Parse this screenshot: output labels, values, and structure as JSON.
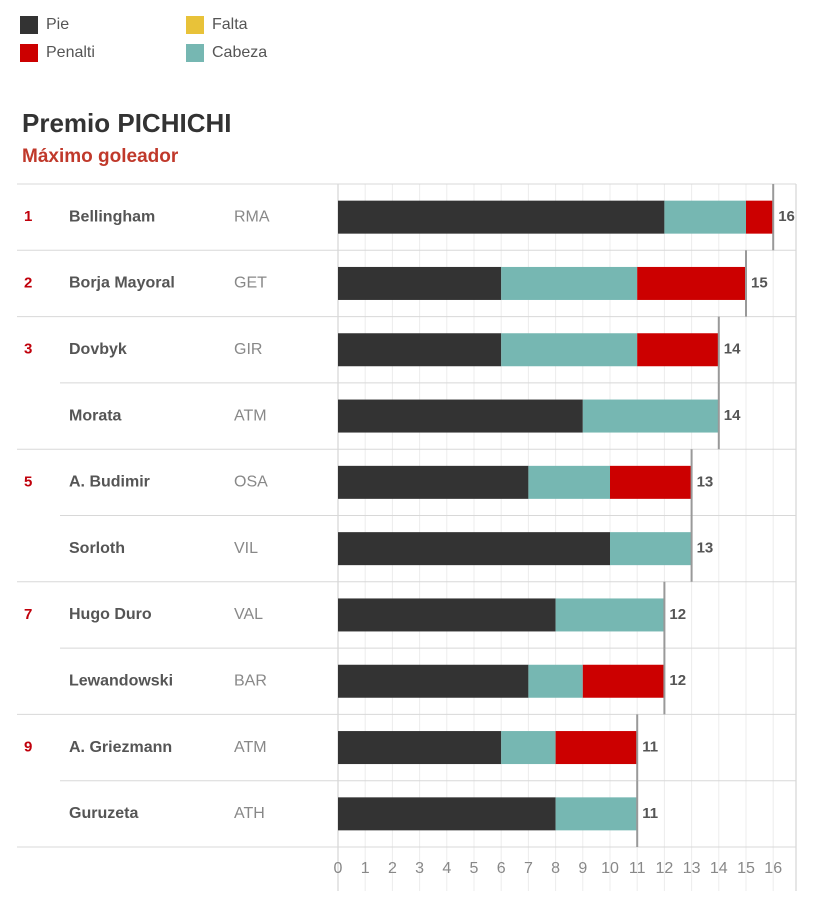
{
  "legend": [
    {
      "label": "Pie",
      "color": "#333333"
    },
    {
      "label": "Falta",
      "color": "#e8c239"
    },
    {
      "label": "Penalti",
      "color": "#cc0000"
    },
    {
      "label": "Cabeza",
      "color": "#76b7b2"
    }
  ],
  "chart_data": {
    "type": "bar",
    "orientation": "horizontal",
    "stacked": true,
    "title": "Premio PICHICHI",
    "subtitle": "Máximo goleador",
    "xlim": [
      0,
      16
    ],
    "xticks": [
      "0",
      "1",
      "2",
      "3",
      "4",
      "5",
      "6",
      "7",
      "8",
      "9",
      "10",
      "11",
      "12",
      "13",
      "14",
      "15",
      "16"
    ],
    "grid": true,
    "legend_position": "top-left",
    "series_order": [
      "pie",
      "cabeza",
      "penalti",
      "falta"
    ],
    "colors": {
      "pie": "#333333",
      "cabeza": "#76b7b2",
      "penalti": "#cc0000",
      "falta": "#e8c239"
    },
    "rows": [
      {
        "rank": "1",
        "name": "Bellingham",
        "team": "RMA",
        "pie": 12,
        "cabeza": 3,
        "penalti": 1,
        "falta": 0,
        "total": "16"
      },
      {
        "rank": "2",
        "name": "Borja Mayoral",
        "team": "GET",
        "pie": 6,
        "cabeza": 5,
        "penalti": 4,
        "falta": 0,
        "total": "15"
      },
      {
        "rank": "3",
        "name": "Dovbyk",
        "team": "GIR",
        "pie": 6,
        "cabeza": 5,
        "penalti": 3,
        "falta": 0,
        "total": "14"
      },
      {
        "rank": "",
        "name": "Morata",
        "team": "ATM",
        "pie": 9,
        "cabeza": 5,
        "penalti": 0,
        "falta": 0,
        "total": "14"
      },
      {
        "rank": "5",
        "name": "A. Budimir",
        "team": "OSA",
        "pie": 7,
        "cabeza": 3,
        "penalti": 3,
        "falta": 0,
        "total": "13"
      },
      {
        "rank": "",
        "name": "Sorloth",
        "team": "VIL",
        "pie": 10,
        "cabeza": 3,
        "penalti": 0,
        "falta": 0,
        "total": "13"
      },
      {
        "rank": "7",
        "name": "Hugo Duro",
        "team": "VAL",
        "pie": 8,
        "cabeza": 4,
        "penalti": 0,
        "falta": 0,
        "total": "12"
      },
      {
        "rank": "",
        "name": "Lewandowski",
        "team": "BAR",
        "pie": 7,
        "cabeza": 2,
        "penalti": 3,
        "falta": 0,
        "total": "12"
      },
      {
        "rank": "9",
        "name": "A. Griezmann",
        "team": "ATM",
        "pie": 6,
        "cabeza": 2,
        "penalti": 3,
        "falta": 0,
        "total": "11"
      },
      {
        "rank": "",
        "name": "Guruzeta",
        "team": "ATH",
        "pie": 8,
        "cabeza": 3,
        "penalti": 0,
        "falta": 0,
        "total": "11"
      }
    ]
  }
}
